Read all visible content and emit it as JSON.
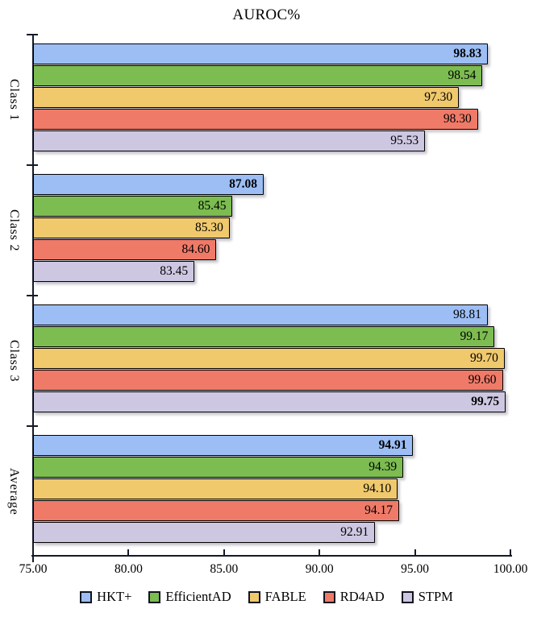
{
  "chart_data": {
    "type": "bar",
    "orientation": "horizontal",
    "title": "AUROC%",
    "categories": [
      "Class 1",
      "Class 2",
      "Class 3",
      "Average"
    ],
    "series": [
      {
        "name": "HKT+",
        "color": "#9CBEF5",
        "values": [
          98.83,
          87.08,
          98.81,
          94.91
        ]
      },
      {
        "name": "EfficientAD",
        "color": "#7CBC50",
        "values": [
          98.54,
          85.45,
          99.17,
          94.39
        ]
      },
      {
        "name": "FABLE",
        "color": "#F0C96D",
        "values": [
          97.3,
          85.3,
          99.7,
          94.1
        ]
      },
      {
        "name": "RD4AD",
        "color": "#F07A68",
        "values": [
          98.3,
          84.6,
          99.6,
          94.17
        ]
      },
      {
        "name": "STPM",
        "color": "#CEC7E2",
        "values": [
          95.53,
          83.45,
          99.75,
          92.91
        ]
      }
    ],
    "value_label_format": "2-decimals",
    "emphasis": "max-value-per-category-is-bold",
    "xlim": [
      75,
      100
    ],
    "x_ticks": [
      "75.00",
      "80.00",
      "85.00",
      "90.00",
      "95.00",
      "100.00"
    ],
    "grid": "off",
    "legend_position": "bottom",
    "bar_border_color": "#000000",
    "axis_color": "#151a28",
    "text_color": "#000000",
    "background_color": "#ffffff"
  }
}
